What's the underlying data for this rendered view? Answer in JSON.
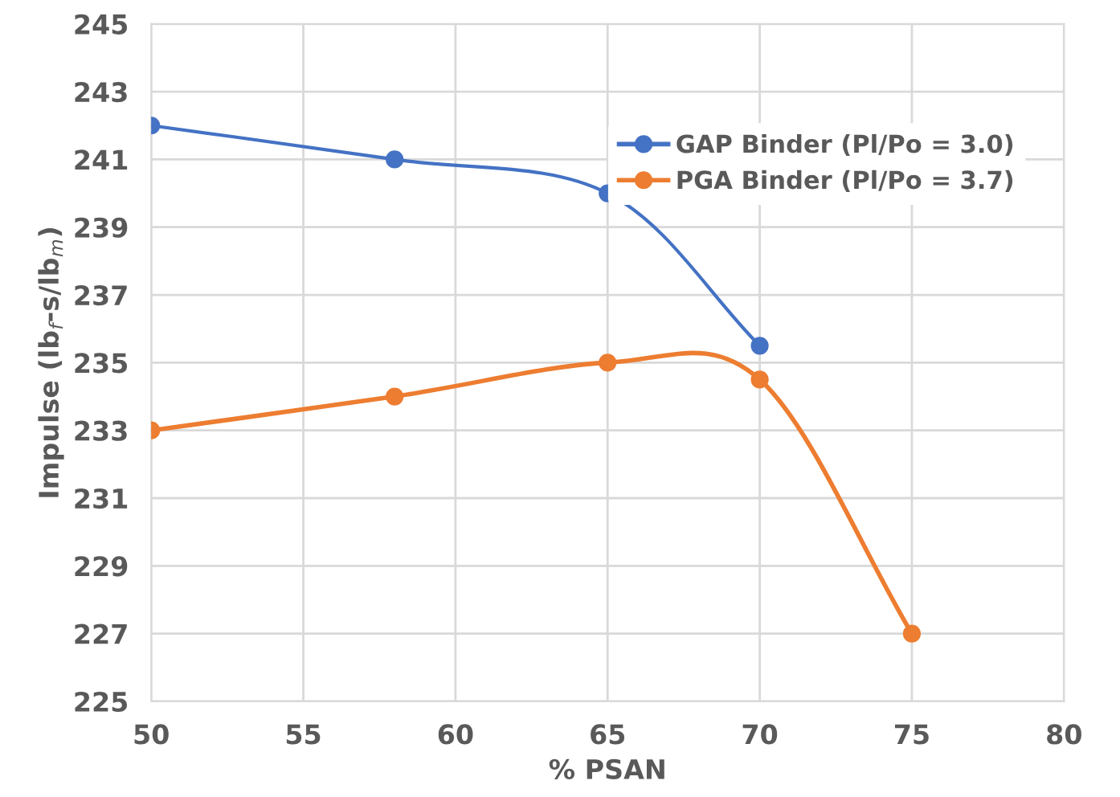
{
  "chart_data": {
    "type": "line",
    "xlabel": "% PSAN",
    "ylabel": "Impulse (lb$_{f}$-s/lb$_{m}$)",
    "xlim": [
      50,
      80
    ],
    "xticks": [
      50,
      55,
      60,
      65,
      70,
      75,
      80
    ],
    "ylim": [
      225,
      245
    ],
    "yticks": [
      225,
      227,
      229,
      231,
      233,
      235,
      237,
      239,
      241,
      243,
      245
    ],
    "grid": true,
    "legend": "top right",
    "marker": "circle",
    "line_style": "solid",
    "series": [
      {
        "name": "GAP Binder (Pl/Po = 3.0)",
        "color": "#4472c4",
        "x": [
          50,
          58,
          65,
          70
        ],
        "values": [
          242,
          241,
          240,
          235.5
        ]
      },
      {
        "name": "PGA Binder (Pl/Po = 3.7)",
        "color": "#ed7d31",
        "x": [
          50,
          58,
          65,
          70,
          75
        ],
        "values": [
          233,
          234,
          235,
          234.5,
          227
        ]
      }
    ]
  }
}
